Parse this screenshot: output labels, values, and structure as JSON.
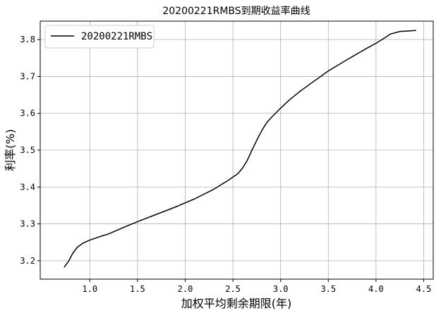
{
  "chart_data": {
    "type": "line",
    "title": "20200221RMBS到期收益率曲线",
    "xlabel": "加权平均剩余期限(年)",
    "ylabel": "利率(%)",
    "xlim": [
      0.48,
      4.6
    ],
    "ylim": [
      3.15,
      3.85
    ],
    "xticks": [
      1.0,
      1.5,
      2.0,
      2.5,
      3.0,
      3.5,
      4.0,
      4.5
    ],
    "xtick_labels": [
      "1.0",
      "1.5",
      "2.0",
      "2.5",
      "3.0",
      "3.5",
      "4.0",
      "4.5"
    ],
    "yticks": [
      3.2,
      3.3,
      3.4,
      3.5,
      3.6,
      3.7,
      3.8
    ],
    "ytick_labels": [
      "3.2",
      "3.3",
      "3.4",
      "3.5",
      "3.6",
      "3.7",
      "3.8"
    ],
    "grid": true,
    "legend_position": "top-left",
    "series": [
      {
        "name": "20200221RMBS",
        "color": "#000000",
        "x": [
          0.73,
          0.78,
          0.82,
          0.87,
          0.93,
          1.0,
          1.1,
          1.2,
          1.35,
          1.5,
          1.7,
          1.9,
          2.1,
          2.3,
          2.45,
          2.55,
          2.6,
          2.65,
          2.7,
          2.75,
          2.8,
          2.85,
          2.9,
          3.0,
          3.1,
          3.2,
          3.35,
          3.5,
          3.7,
          3.9,
          4.0,
          4.1,
          4.15,
          4.25,
          4.32,
          4.42
        ],
        "y": [
          3.182,
          3.2,
          3.22,
          3.237,
          3.248,
          3.256,
          3.265,
          3.273,
          3.29,
          3.306,
          3.326,
          3.346,
          3.368,
          3.394,
          3.418,
          3.436,
          3.451,
          3.472,
          3.5,
          3.527,
          3.552,
          3.573,
          3.588,
          3.614,
          3.638,
          3.659,
          3.687,
          3.715,
          3.746,
          3.776,
          3.79,
          3.806,
          3.815,
          3.822,
          3.823,
          3.825
        ]
      }
    ]
  }
}
